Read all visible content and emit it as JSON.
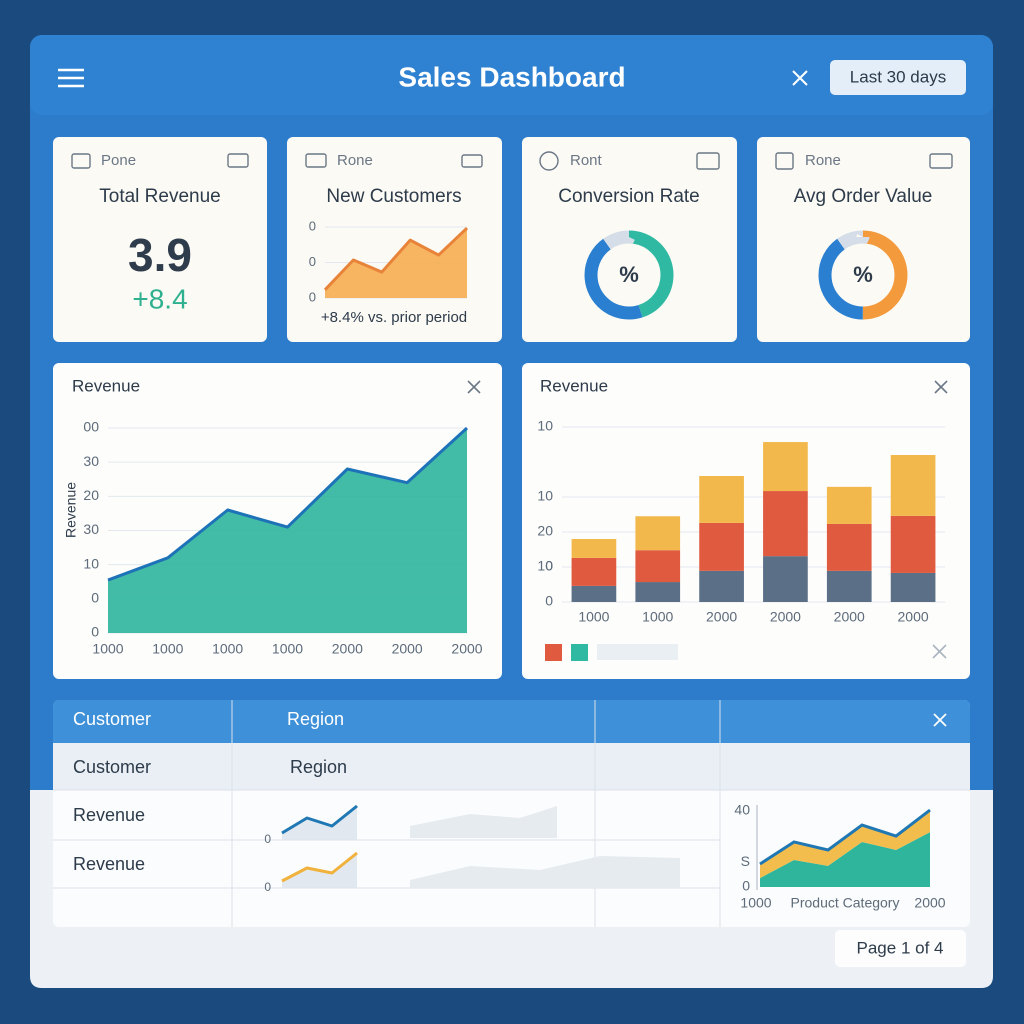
{
  "header": {
    "title": "Sales Dashboard",
    "range_button": "Last 30 days"
  },
  "cards": [
    {
      "label": "Pone",
      "title": "Total Revenue",
      "value": "3.9",
      "change": "+8.4"
    },
    {
      "label": "Rone",
      "title": "New Customers",
      "caption": "+8.4% vs. prior period",
      "chart": {
        "type": "area",
        "ylim": [
          0,
          2
        ],
        "yticks": [
          0,
          {
            "value": 1,
            "label": "0"
          },
          {
            "value": 2,
            "label": "0"
          }
        ],
        "values": [
          0.23,
          1.07,
          0.73,
          1.63,
          1.21,
          1.97
        ],
        "fill": "#f6ad52",
        "line_color": "#e8843a",
        "grid": true
      }
    },
    {
      "label": "Ront",
      "title": "Conversion Rate",
      "center": "%",
      "chart": {
        "type": "donut",
        "values": [
          45,
          45,
          10
        ],
        "colors": [
          "#2fb9a2",
          "#2a7fd0",
          "#d5dee8"
        ]
      }
    },
    {
      "label": "Rone",
      "title": "Avg Order Value",
      "center": "%",
      "chart": {
        "type": "donut",
        "values": [
          50,
          40,
          10
        ],
        "colors": [
          "#f39a3c",
          "#2a7fd0",
          "#d5dee8"
        ]
      }
    }
  ],
  "line_panel": {
    "title": "Revenue",
    "chart": {
      "type": "area",
      "y_label": "Revenue",
      "categories": [
        "1000",
        "1000",
        "1000",
        "1000",
        "2000",
        "2000",
        "2000"
      ],
      "values": [
        15.5,
        22,
        36,
        31,
        48,
        44,
        60
      ],
      "ylim": [
        0,
        60
      ],
      "yticks": [
        0,
        {
          "value": 10,
          "label": "0"
        },
        {
          "value": 20,
          "label": "10"
        },
        {
          "value": 30,
          "label": "30"
        },
        {
          "value": 40,
          "label": "20"
        },
        {
          "value": 50,
          "label": "30"
        },
        {
          "value": 60,
          "label": "00"
        }
      ],
      "fill": "#2eb59c",
      "line_color": "#1e72b8",
      "grid": true
    }
  },
  "bar_panel": {
    "title": "Revenue",
    "chart": {
      "type": "stacked_bar",
      "categories": [
        "1000",
        "1000",
        "2000",
        "2000",
        "2000",
        "2000"
      ],
      "series": [
        {
          "color": "#5b6f86",
          "values": [
            4.6,
            5.7,
            8.9,
            13.1,
            8.9,
            8.3
          ]
        },
        {
          "color": "#e05a3f",
          "values": [
            8,
            9.1,
            13.7,
            18.6,
            13.4,
            16.3
          ]
        },
        {
          "color": "#f2b84b",
          "values": [
            5.4,
            9.7,
            13.4,
            14,
            10.6,
            17.4
          ]
        }
      ],
      "ylim": [
        0,
        50
      ],
      "yticks": [
        0,
        {
          "value": 10,
          "label": "0"
        },
        10,
        {
          "value": 30,
          "label": "10"
        },
        20,
        {
          "value": 50,
          "label": "10"
        }
      ],
      "grid": true
    }
  },
  "table": {
    "header": [
      "Customer",
      "Region"
    ],
    "rows": [
      [
        "Customer",
        "Region"
      ],
      [
        "Revenue"
      ],
      [
        "Revenue"
      ]
    ],
    "sparklines": [
      {
        "type": "area",
        "ylim": [
          0,
          40
        ],
        "yticks": [
          0
        ],
        "values": [
          7,
          22,
          14,
          34
        ],
        "fill": "#dfe6ee",
        "line_color": "#1f78b4"
      },
      {
        "type": "area",
        "ylim": [
          0,
          40
        ],
        "yticks": [
          0
        ],
        "values": [
          7,
          20,
          15,
          35
        ],
        "fill": "#dfe6ee",
        "line_color": "#f0b23c"
      }
    ],
    "mini_chart": {
      "type": "stacked_area",
      "ylim": [
        0,
        40
      ],
      "yticks": [
        0,
        {
          "value": 13,
          "label": "S"
        },
        40
      ],
      "x_labels": [
        "1000",
        "Product Category",
        "2000"
      ],
      "series": [
        {
          "color": "#2eb59c",
          "values": [
            4.7,
            14.2,
            11.1,
            23.7,
            19.5,
            28.9
          ]
        },
        {
          "color": "#f3bd4e",
          "values": [
            7.4,
            9.5,
            8.4,
            8.9,
            7.3,
            11.6
          ]
        }
      ],
      "line_color": "#1f78b4"
    }
  },
  "pager": "Page 1 of 4"
}
